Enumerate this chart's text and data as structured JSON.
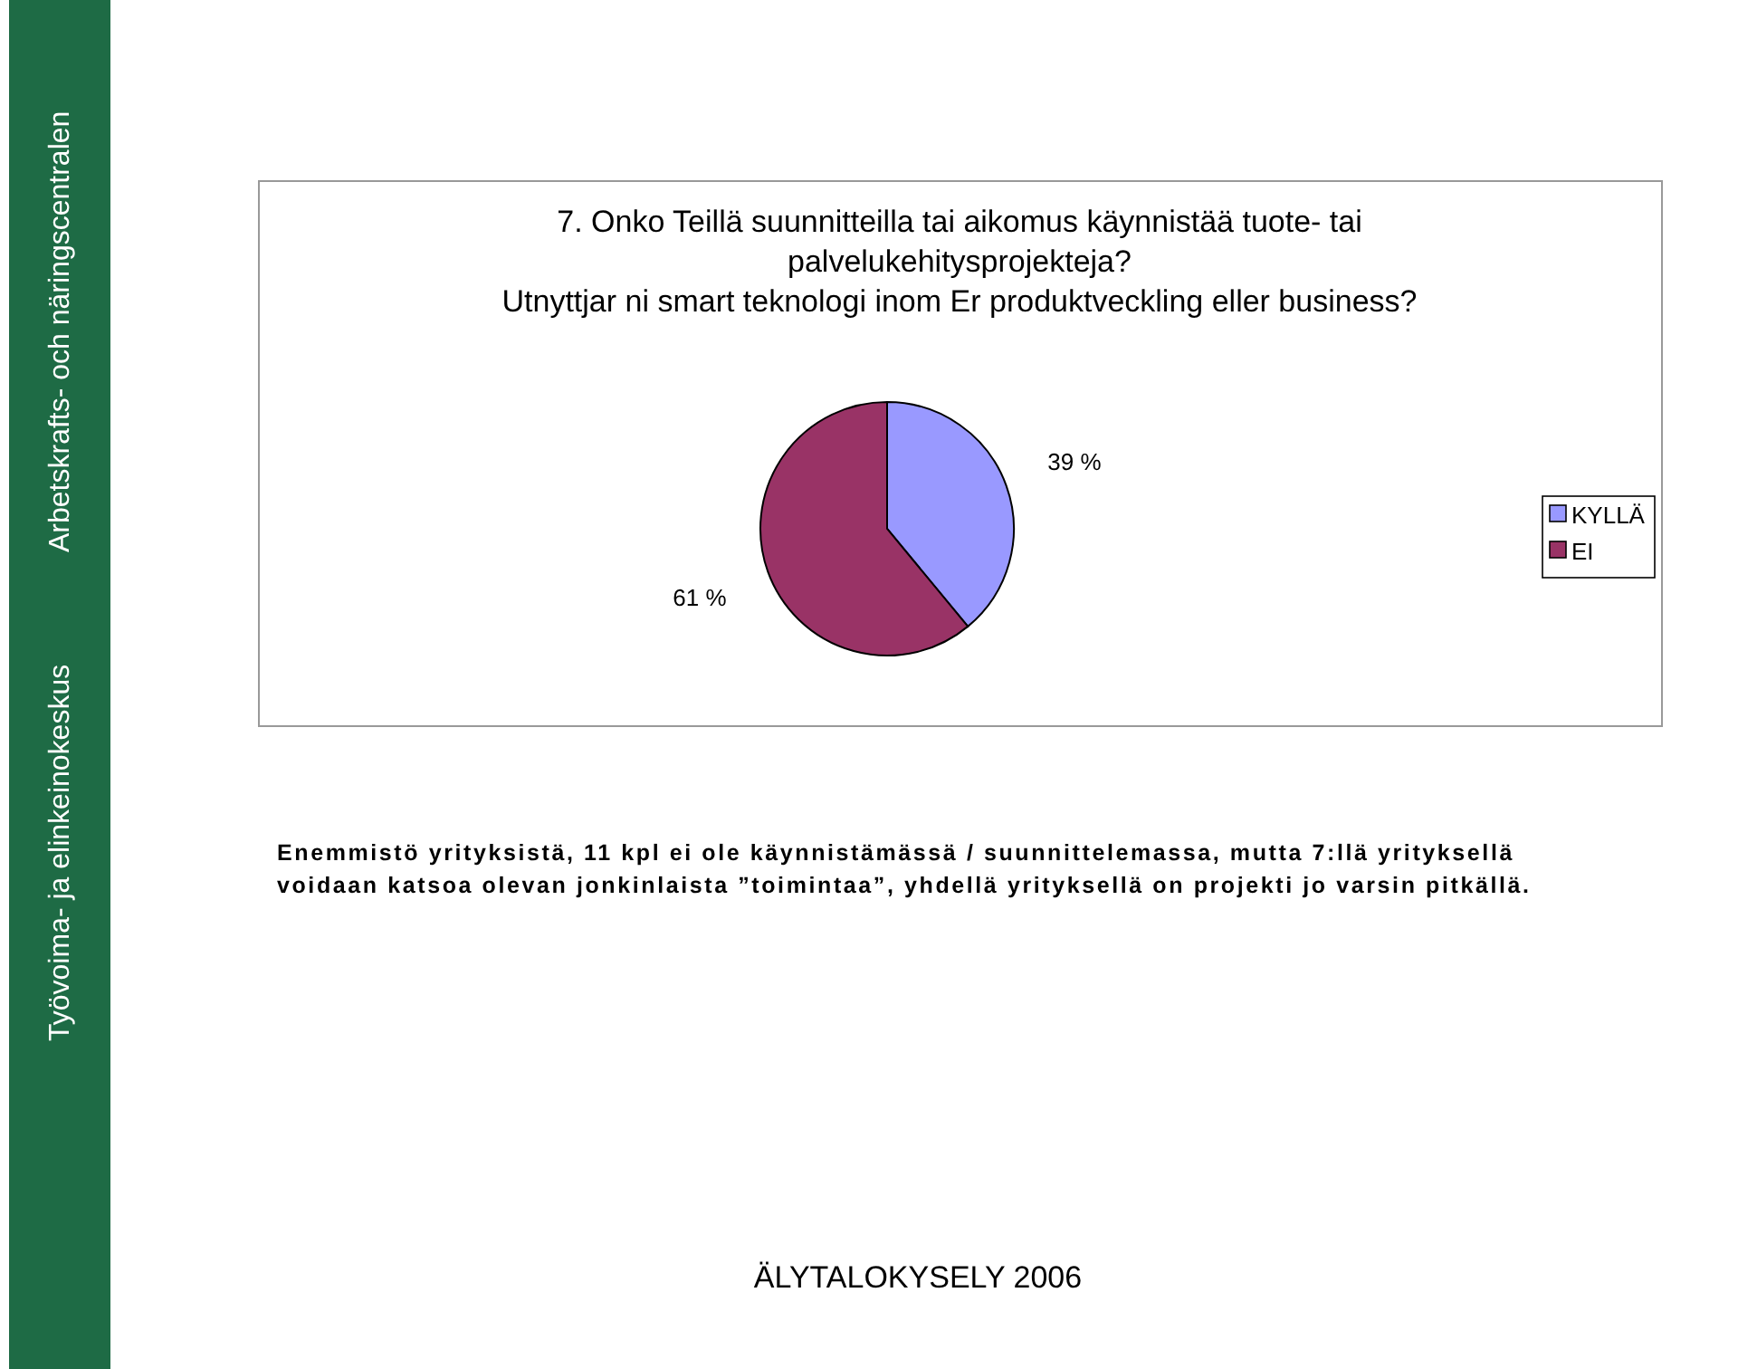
{
  "chart_data": {
    "type": "pie",
    "title": "7. Onko Teillä suunnitteilla tai aikomus käynnistää tuote- tai\npalvelukehitysprojekteja?\nUtnyttjar ni smart teknologi inom Er produktveckling eller business?",
    "categories": [
      "KYLLÄ",
      "EI"
    ],
    "values": [
      39,
      61
    ],
    "colors": [
      "#9999ff",
      "#993366"
    ],
    "value_labels": [
      "39 %",
      "61 %"
    ],
    "legend": "right",
    "annotations": [
      "Työvoima- ja elinkeinokeskus",
      "Arbetskrafts- och näringscentralen",
      "Enemmistö yrityksistä, 11 kpl ei ole käynnistämässä / suunnittelemassa, mutta 7:llä yrityksellä",
      "voidaan katsoa olevan jonkinlaista ”toimintaa”, yhdellä yrityksellä on projekti jo varsin pitkällä.",
      "ÄLYTALOKYSELY 2006"
    ]
  }
}
